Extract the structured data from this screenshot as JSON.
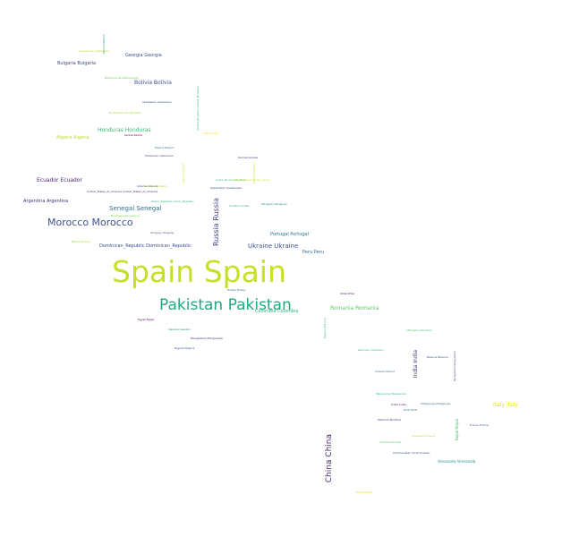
{
  "words": [
    {
      "text": "Spain Spain",
      "color": "#c8df2a"
    },
    {
      "text": "Pakistan Pakistan",
      "color": "#22a884"
    },
    {
      "text": "Morocco Morocco",
      "color": "#3b528b"
    },
    {
      "text": "China China",
      "color": "#482677"
    },
    {
      "text": "Russia Russia",
      "color": "#414487"
    },
    {
      "text": "Ukraine Ukraine",
      "color": "#3b528b"
    },
    {
      "text": "Senegal Senegal",
      "color": "#2c728e"
    },
    {
      "text": "Ecuador Ecuador",
      "color": "#482677"
    },
    {
      "text": "Argentina Argentina",
      "color": "#472c7a"
    },
    {
      "text": "Bolivia Bolivia",
      "color": "#3b528b"
    },
    {
      "text": "Honduras Honduras",
      "color": "#35b779"
    },
    {
      "text": "Algeria Algeria",
      "color": "#b5de2b"
    },
    {
      "text": "Bulgaria Bulgaria",
      "color": "#414487"
    },
    {
      "text": "Georgia Georgia",
      "color": "#3b528b"
    },
    {
      "text": "Romania Romania",
      "color": "#5ec962"
    },
    {
      "text": "India India",
      "color": "#46327e"
    },
    {
      "text": "Italy Italy",
      "color": "#e5e419"
    },
    {
      "text": "Portugal Portugal",
      "color": "#2c728e"
    },
    {
      "text": "Dominican_Republic Dominican_Republic",
      "color": "#3e4989"
    },
    {
      "text": "Colombia Colombia",
      "color": "#2db27d"
    },
    {
      "text": "Peru Peru",
      "color": "#31688e"
    },
    {
      "text": "Venezuela Venezuela",
      "color": "#21918c"
    },
    {
      "text": "Nepal Nepal",
      "color": "#3dbc74"
    },
    {
      "text": "Kyrgyzstan Kyrgyzstan",
      "color": "#3e4a89"
    },
    {
      "text": "Lithuania Lithuania",
      "color": "#3dbc74"
    },
    {
      "text": "Belarus Belarus",
      "color": "#3b528b"
    },
    {
      "text": "Chile Chile",
      "color": "#440154"
    },
    {
      "text": "Mexico Mexico",
      "color": "#21918c"
    },
    {
      "text": "Netherlands Netherlands",
      "color": "#70cf57"
    },
    {
      "text": "El_Salvador El_Salvador",
      "color": "#a2da37"
    },
    {
      "text": "Azerbaijan Azerbaijan",
      "color": "#3b528b"
    },
    {
      "text": "United_Kingdom United_Kingdom",
      "color": "#35b779"
    },
    {
      "text": "Serbia Serbia",
      "color": "#440154"
    },
    {
      "text": "Poland Poland",
      "color": "#2c728e"
    },
    {
      "text": "Cameroon Cameroon",
      "color": "#472c7a"
    },
    {
      "text": "Guinea Guinea",
      "color": "#482677"
    },
    {
      "text": "Kazakhstan Kazakhstan",
      "color": "#3b528b"
    },
    {
      "text": "Albania Albania",
      "color": "#3e4989"
    },
    {
      "text": "United_States_of_America United_States_of_America",
      "color": "#482677"
    },
    {
      "text": "Costa_Rica Costa_Rica",
      "color": "#35b779"
    },
    {
      "text": "Czech_Republic Czech_Republic",
      "color": "#2db27d"
    },
    {
      "text": "Paraguay Paraguay",
      "color": "#21918c"
    },
    {
      "text": "Nicaragua Nicaragua",
      "color": "#7ad151"
    },
    {
      "text": "Uruguay Uruguay",
      "color": "#414487"
    },
    {
      "text": "Bosnia Bosnia",
      "color": "#a2da37"
    },
    {
      "text": "Turkey Turkey",
      "color": "#3b528b"
    },
    {
      "text": "Egypt Egypt",
      "color": "#440154"
    },
    {
      "text": "Sweden Sweden",
      "color": "#21918c"
    },
    {
      "text": "Bangladesh Bangladesh",
      "color": "#46327e"
    },
    {
      "text": "Nigeria Nigeria",
      "color": "#3b528b"
    },
    {
      "text": "Germany Germany",
      "color": "#2db27d"
    },
    {
      "text": "Ireland Ireland",
      "color": "#31688e"
    },
    {
      "text": "Macedonia Macedonia",
      "color": "#2db27d"
    },
    {
      "text": "Cuba Cuba",
      "color": "#440154"
    },
    {
      "text": "Haiti Haiti",
      "color": "#2c728e"
    },
    {
      "text": "Philippines Philippines",
      "color": "#31688e"
    },
    {
      "text": "France France",
      "color": "#3b528b"
    },
    {
      "text": "Moldova Moldova",
      "color": "#482677"
    },
    {
      "text": "Armenia Armenia",
      "color": "#b5de2b"
    },
    {
      "text": "Gambia Gambia",
      "color": "#5ec962"
    },
    {
      "text": "Turkmenistan Turkmenistan",
      "color": "#3b528b"
    },
    {
      "text": "Brazil Brazil",
      "color": "#e5e419"
    },
    {
      "text": "Iceland Iceland",
      "color": "#d8e219"
    },
    {
      "text": "Guatemala Guatemala",
      "color": "#b5de2b"
    },
    {
      "text": "Malta Malta",
      "color": "#fde725"
    },
    {
      "text": "Canada Canada",
      "color": "#bddf26"
    },
    {
      "text": "Jamaica Jamaica",
      "color": "#a8db34"
    },
    {
      "text": "Estonia Estonia",
      "color": "#3dbc74"
    },
    {
      "text": "Sierra_Leone Sierra_Leone",
      "color": "#d2e21b"
    },
    {
      "text": "Croatia Croatia",
      "color": "#2db27d"
    },
    {
      "text": "Russia Russia",
      "color": "#2db27d"
    }
  ]
}
